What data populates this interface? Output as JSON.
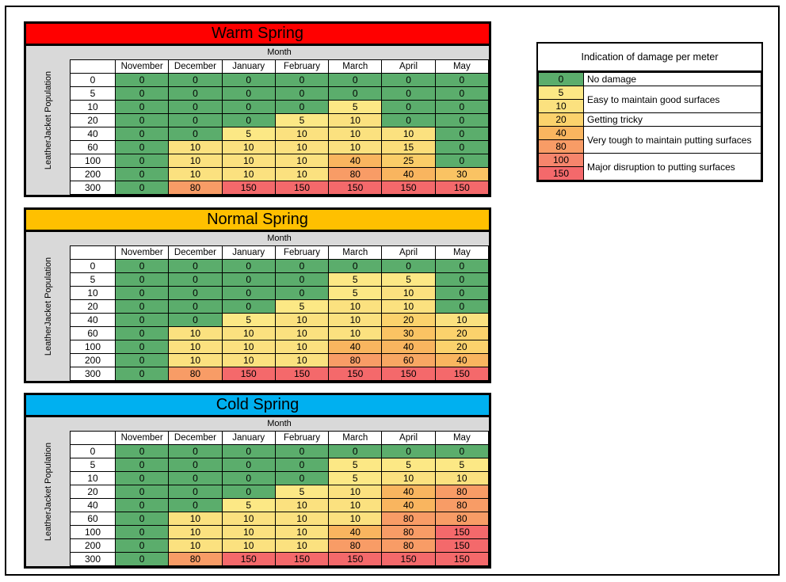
{
  "labels": {
    "month": "Month",
    "population": "LeatherJacket Population"
  },
  "value_colors": {
    "0": "#5BAD6C",
    "5": "#FCE885",
    "10": "#FBE17F",
    "15": "#FBDD79",
    "20": "#FBD26C",
    "25": "#FACD68",
    "30": "#FAC363",
    "40": "#F9B55F",
    "60": "#F8A763",
    "80": "#F89C66",
    "100": "#F6856C",
    "150": "#F4696B"
  },
  "chart_data": [
    {
      "type": "heatmap",
      "title": "Warm Spring",
      "title_color": "#FF0000",
      "xlabel": "Month",
      "ylabel": "LeatherJacket Population",
      "x": [
        "November",
        "December",
        "January",
        "February",
        "March",
        "April",
        "May"
      ],
      "y": [
        "0",
        "5",
        "10",
        "20",
        "40",
        "60",
        "100",
        "200",
        "300"
      ],
      "values": [
        [
          0,
          0,
          0,
          0,
          0,
          0,
          0
        ],
        [
          0,
          0,
          0,
          0,
          0,
          0,
          0
        ],
        [
          0,
          0,
          0,
          0,
          5,
          0,
          0
        ],
        [
          0,
          0,
          0,
          5,
          10,
          0,
          0
        ],
        [
          0,
          0,
          5,
          10,
          10,
          10,
          0
        ],
        [
          0,
          10,
          10,
          10,
          10,
          15,
          0
        ],
        [
          0,
          10,
          10,
          10,
          40,
          25,
          0
        ],
        [
          0,
          10,
          10,
          10,
          80,
          40,
          30
        ],
        [
          0,
          80,
          150,
          150,
          150,
          150,
          150
        ]
      ]
    },
    {
      "type": "heatmap",
      "title": "Normal Spring",
      "title_color": "#FFC000",
      "xlabel": "Month",
      "ylabel": "LeatherJacket Population",
      "x": [
        "November",
        "December",
        "January",
        "February",
        "March",
        "April",
        "May"
      ],
      "y": [
        "0",
        "5",
        "10",
        "20",
        "40",
        "60",
        "100",
        "200",
        "300"
      ],
      "values": [
        [
          0,
          0,
          0,
          0,
          0,
          0,
          0
        ],
        [
          0,
          0,
          0,
          0,
          5,
          5,
          0
        ],
        [
          0,
          0,
          0,
          0,
          5,
          10,
          0
        ],
        [
          0,
          0,
          0,
          5,
          10,
          10,
          0
        ],
        [
          0,
          0,
          5,
          10,
          10,
          20,
          10
        ],
        [
          0,
          10,
          10,
          10,
          10,
          30,
          20
        ],
        [
          0,
          10,
          10,
          10,
          40,
          40,
          20
        ],
        [
          0,
          10,
          10,
          10,
          80,
          60,
          40
        ],
        [
          0,
          80,
          150,
          150,
          150,
          150,
          150
        ]
      ]
    },
    {
      "type": "heatmap",
      "title": "Cold Spring",
      "title_color": "#00B0F0",
      "xlabel": "Month",
      "ylabel": "LeatherJacket Population",
      "x": [
        "November",
        "December",
        "January",
        "February",
        "March",
        "April",
        "May"
      ],
      "y": [
        "0",
        "5",
        "10",
        "20",
        "40",
        "60",
        "100",
        "200",
        "300"
      ],
      "values": [
        [
          0,
          0,
          0,
          0,
          0,
          0,
          0
        ],
        [
          0,
          0,
          0,
          0,
          5,
          5,
          5
        ],
        [
          0,
          0,
          0,
          0,
          5,
          10,
          10
        ],
        [
          0,
          0,
          0,
          5,
          10,
          40,
          80
        ],
        [
          0,
          0,
          5,
          10,
          10,
          40,
          80
        ],
        [
          0,
          10,
          10,
          10,
          10,
          80,
          80
        ],
        [
          0,
          10,
          10,
          10,
          40,
          80,
          150
        ],
        [
          0,
          10,
          10,
          10,
          80,
          80,
          150
        ],
        [
          0,
          80,
          150,
          150,
          150,
          150,
          150
        ]
      ]
    }
  ],
  "legend": {
    "title": "Indication of damage per meter",
    "entries": [
      {
        "values": [
          "0"
        ],
        "desc": "No damage"
      },
      {
        "values": [
          "5",
          "10"
        ],
        "desc": "Easy to maintain good surfaces"
      },
      {
        "values": [
          "20"
        ],
        "desc": "Getting tricky"
      },
      {
        "values": [
          "40",
          "80"
        ],
        "desc": "Very tough to maintain putting surfaces"
      },
      {
        "values": [
          "100",
          "150"
        ],
        "desc": "Major disruption to putting surfaces"
      }
    ]
  }
}
